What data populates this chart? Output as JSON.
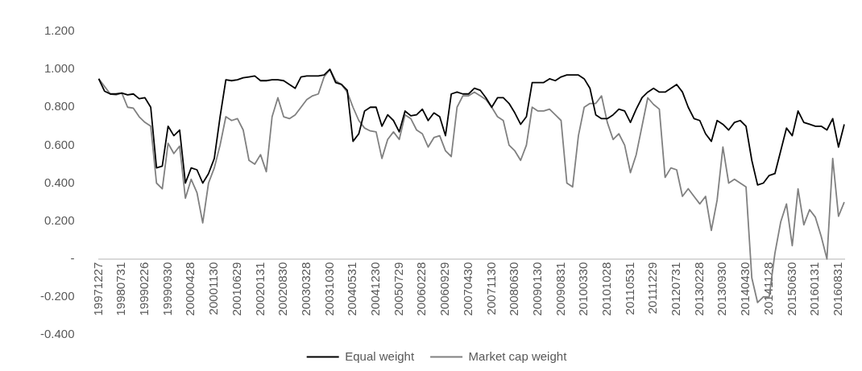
{
  "chart_data": {
    "type": "line",
    "categories": [
      "19971227",
      null,
      null,
      null,
      "19980731",
      null,
      null,
      null,
      "19990226",
      null,
      null,
      null,
      "19990930",
      null,
      null,
      null,
      "20000428",
      null,
      null,
      null,
      "20001130",
      null,
      null,
      null,
      "20010629",
      null,
      null,
      null,
      "20020131",
      null,
      null,
      null,
      "20020830",
      null,
      null,
      null,
      "20030328",
      null,
      null,
      null,
      "20031030",
      null,
      null,
      null,
      "20040531",
      null,
      null,
      null,
      "20041230",
      null,
      null,
      null,
      "20050729",
      null,
      null,
      null,
      "20060228",
      null,
      null,
      null,
      "20060929",
      null,
      null,
      null,
      "20070430",
      null,
      null,
      null,
      "20071130",
      null,
      null,
      null,
      "20080630",
      null,
      null,
      null,
      "20090130",
      null,
      null,
      null,
      "20090831",
      null,
      null,
      null,
      "20100330",
      null,
      null,
      null,
      "20101028",
      null,
      null,
      null,
      "20110531",
      null,
      null,
      null,
      "20111229",
      null,
      null,
      null,
      "20120731",
      null,
      null,
      null,
      "20130228",
      null,
      null,
      null,
      "20130930",
      null,
      null,
      null,
      "20140430",
      null,
      null,
      null,
      "20141128",
      null,
      null,
      null,
      "20150630",
      null,
      null,
      null,
      "20160131",
      null,
      null,
      null,
      "20160831",
      null
    ],
    "series": [
      {
        "name": "Equal weight",
        "color": "#000000",
        "values": [
          0.95,
          0.885,
          0.87,
          0.87,
          0.875,
          0.865,
          0.87,
          0.845,
          0.85,
          0.8,
          0.48,
          0.49,
          0.7,
          0.65,
          0.68,
          0.4,
          0.48,
          0.47,
          0.4,
          0.45,
          0.53,
          0.75,
          0.945,
          0.94,
          0.945,
          0.955,
          0.96,
          0.965,
          0.94,
          0.94,
          0.945,
          0.945,
          0.94,
          0.92,
          0.9,
          0.96,
          0.965,
          0.965,
          0.965,
          0.97,
          1.0,
          0.93,
          0.92,
          0.89,
          0.62,
          0.66,
          0.78,
          0.8,
          0.8,
          0.7,
          0.76,
          0.73,
          0.67,
          0.78,
          0.755,
          0.76,
          0.79,
          0.73,
          0.77,
          0.75,
          0.65,
          0.87,
          0.88,
          0.87,
          0.87,
          0.9,
          0.89,
          0.85,
          0.8,
          0.85,
          0.85,
          0.82,
          0.77,
          0.71,
          0.75,
          0.93,
          0.93,
          0.93,
          0.95,
          0.94,
          0.96,
          0.97,
          0.97,
          0.97,
          0.95,
          0.9,
          0.76,
          0.74,
          0.74,
          0.76,
          0.79,
          0.78,
          0.72,
          0.79,
          0.85,
          0.88,
          0.9,
          0.88,
          0.88,
          0.9,
          0.92,
          0.88,
          0.8,
          0.74,
          0.73,
          0.66,
          0.62,
          0.73,
          0.71,
          0.68,
          0.72,
          0.73,
          0.7,
          0.52,
          0.39,
          0.4,
          0.44,
          0.45,
          0.57,
          0.69,
          0.65,
          0.78,
          0.72,
          0.71,
          0.7,
          0.7,
          0.68,
          0.74,
          0.59,
          0.71
        ]
      },
      {
        "name": "Market cap weight",
        "color": "#808080",
        "values": [
          0.95,
          0.91,
          0.87,
          0.865,
          0.875,
          0.8,
          0.795,
          0.75,
          0.72,
          0.7,
          0.4,
          0.37,
          0.61,
          0.556,
          0.595,
          0.32,
          0.42,
          0.35,
          0.19,
          0.4,
          0.48,
          0.6,
          0.75,
          0.73,
          0.74,
          0.68,
          0.52,
          0.5,
          0.55,
          0.46,
          0.75,
          0.85,
          0.75,
          0.74,
          0.76,
          0.8,
          0.84,
          0.86,
          0.87,
          0.96,
          1.0,
          0.94,
          0.92,
          0.88,
          0.8,
          0.73,
          0.69,
          0.675,
          0.67,
          0.53,
          0.63,
          0.67,
          0.63,
          0.76,
          0.74,
          0.68,
          0.66,
          0.59,
          0.64,
          0.65,
          0.57,
          0.54,
          0.8,
          0.86,
          0.86,
          0.88,
          0.86,
          0.84,
          0.8,
          0.75,
          0.73,
          0.6,
          0.57,
          0.52,
          0.6,
          0.8,
          0.78,
          0.78,
          0.79,
          0.76,
          0.73,
          0.4,
          0.38,
          0.65,
          0.8,
          0.82,
          0.82,
          0.86,
          0.72,
          0.63,
          0.66,
          0.6,
          0.455,
          0.55,
          0.7,
          0.85,
          0.815,
          0.79,
          0.43,
          0.48,
          0.47,
          0.33,
          0.37,
          0.33,
          0.29,
          0.33,
          0.15,
          0.31,
          0.59,
          0.4,
          0.42,
          0.4,
          0.38,
          -0.1,
          -0.23,
          -0.2,
          -0.2,
          0.03,
          0.195,
          0.29,
          0.07,
          0.37,
          0.18,
          0.26,
          0.22,
          0.12,
          0.0,
          0.53,
          0.225,
          0.3
        ]
      }
    ],
    "ylim": [
      -0.4,
      1.2
    ],
    "yticks": [
      {
        "value": -0.4,
        "label": "-0.400"
      },
      {
        "value": -0.2,
        "label": "-0.200"
      },
      {
        "value": 0,
        "label": "-"
      },
      {
        "value": 0.2,
        "label": "0.200"
      },
      {
        "value": 0.4,
        "label": "0.400"
      },
      {
        "value": 0.6,
        "label": "0.600"
      },
      {
        "value": 0.8,
        "label": "0.800"
      },
      {
        "value": 1.0,
        "label": "1.000"
      },
      {
        "value": 1.2,
        "label": "1.200"
      }
    ],
    "grid": false,
    "legend": "bottom",
    "marker": "none",
    "line_style": "solid"
  }
}
